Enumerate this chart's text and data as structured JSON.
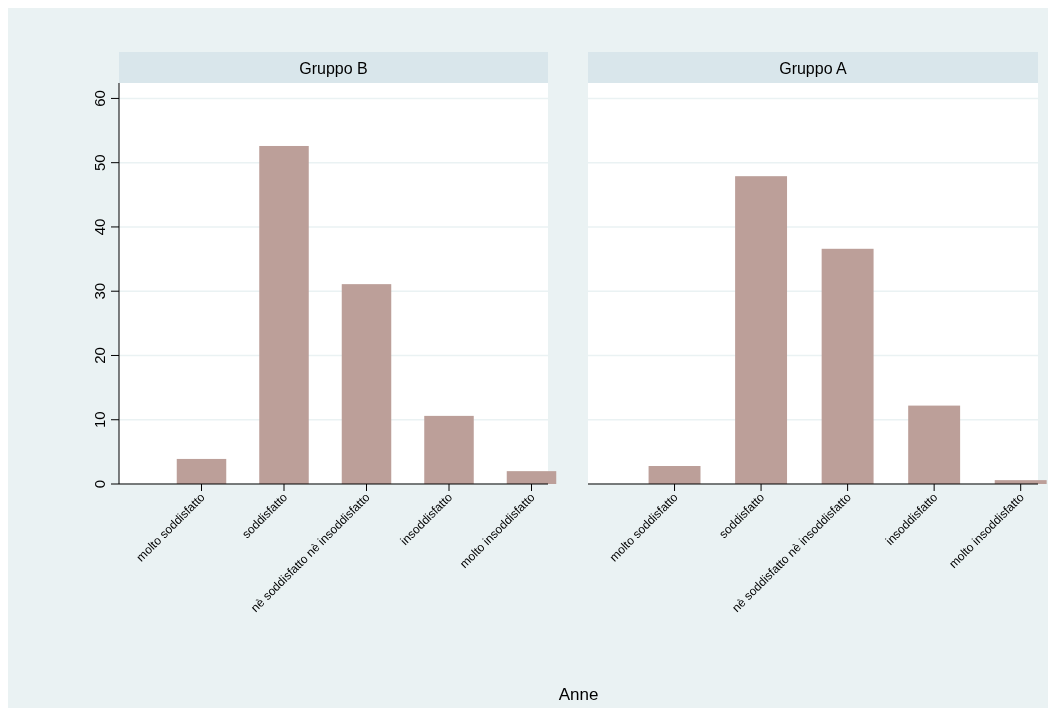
{
  "chart_data": [
    {
      "type": "bar",
      "title": "Gruppo B",
      "xlabel": "Anne",
      "categories": [
        "molto soddisfatto",
        "soddisfatto",
        "nè soddisfatto nè insoddisfatto",
        "insoddisfatto",
        "molto insoddisfatto"
      ],
      "values": [
        3.9,
        52.6,
        31.1,
        10.6,
        2.0
      ],
      "color": "#bc9f99",
      "ylim": [
        0,
        62.4
      ],
      "yticks": [
        0,
        10,
        20,
        30,
        40,
        50,
        60
      ],
      "grid": "y"
    },
    {
      "type": "bar",
      "title": "Gruppo A",
      "categories": [
        "molto soddisfatto",
        "soddisfatto",
        "nè soddisfatto nè insoddisfatto",
        "insoddisfatto",
        "molto insoddisfatto"
      ],
      "values": [
        2.8,
        47.9,
        36.6,
        12.2,
        0.6
      ],
      "color": "#bc9f99",
      "ylim": [
        0,
        62.4
      ],
      "yticks": [
        0,
        10,
        20,
        30,
        40,
        50,
        60
      ],
      "grid": "y",
      "tick_labels": "x"
    }
  ]
}
